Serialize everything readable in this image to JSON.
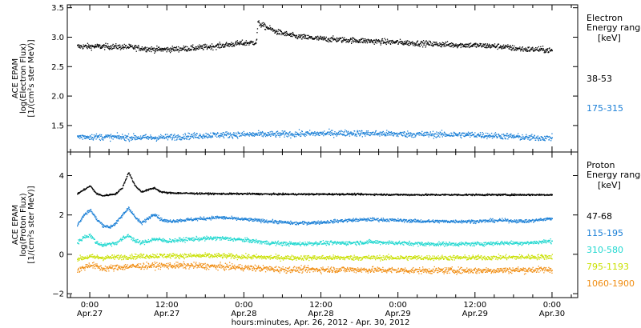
{
  "xaxis": {
    "title": "hours:minutes, Apr. 26, 2012 - Apr. 30, 2012",
    "ticks": [
      {
        "x": 0,
        "time": "0:00",
        "date": "Apr.27"
      },
      {
        "x": 12,
        "time": "12:00",
        "date": "Apr.27"
      },
      {
        "x": 24,
        "time": "0:00",
        "date": "Apr.28"
      },
      {
        "x": 36,
        "time": "12:00",
        "date": "Apr.28"
      },
      {
        "x": 48,
        "time": "0:00",
        "date": "Apr.29"
      },
      {
        "x": 60,
        "time": "12:00",
        "date": "Apr.29"
      },
      {
        "x": 72,
        "time": "0:00",
        "date": "Apr.30"
      }
    ]
  },
  "chart_data": [
    {
      "type": "scatter",
      "ylabel": [
        "ACE EPAM",
        "log(Electron Flux)",
        "[1/(cm²s ster MeV)]"
      ],
      "ylim": [
        1.05,
        3.55
      ],
      "yticks": [
        "3.5",
        "3.0",
        "2.5",
        "2.0",
        "1.5"
      ],
      "ytick_values": [
        3.5,
        3.0,
        2.5,
        2.0,
        1.5
      ],
      "xlim": [
        -3.5,
        76
      ],
      "legend": {
        "title": "Electron",
        "subtitle": "Energy ranges",
        "unit": "[keV]"
      },
      "series": [
        {
          "name": "38-53",
          "color": "#000000",
          "noise": 0.045,
          "points": [
            [
              -2,
              2.85
            ],
            [
              2,
              2.85
            ],
            [
              6,
              2.84
            ],
            [
              8,
              2.82
            ],
            [
              10,
              2.8
            ],
            [
              12,
              2.8
            ],
            [
              16,
              2.82
            ],
            [
              20,
              2.86
            ],
            [
              23,
              2.9
            ],
            [
              25.9,
              2.92
            ],
            [
              26.1,
              3.25
            ],
            [
              27,
              3.2
            ],
            [
              29,
              3.1
            ],
            [
              32,
              3.02
            ],
            [
              36,
              2.98
            ],
            [
              40,
              2.96
            ],
            [
              44,
              2.94
            ],
            [
              48,
              2.92
            ],
            [
              52,
              2.9
            ],
            [
              56,
              2.88
            ],
            [
              60,
              2.87
            ],
            [
              64,
              2.85
            ],
            [
              66,
              2.82
            ],
            [
              68,
              2.8
            ],
            [
              70,
              2.8
            ],
            [
              72,
              2.78
            ]
          ]
        },
        {
          "name": "175-315",
          "color": "#1a7fd6",
          "noise": 0.05,
          "points": [
            [
              -2,
              1.32
            ],
            [
              10,
              1.3
            ],
            [
              20,
              1.35
            ],
            [
              30,
              1.36
            ],
            [
              40,
              1.38
            ],
            [
              50,
              1.36
            ],
            [
              60,
              1.35
            ],
            [
              66,
              1.32
            ],
            [
              68,
              1.3
            ],
            [
              72,
              1.3
            ]
          ]
        }
      ]
    },
    {
      "type": "scatter",
      "ylabel": [
        "ACE EPAM",
        "log(Proton Flux)",
        "[1/(cm²s ster MeV)]"
      ],
      "ylim": [
        -2.2,
        5.2
      ],
      "yticks": [
        "4",
        "2",
        "0",
        "−2"
      ],
      "ytick_values": [
        4,
        2,
        0,
        -2
      ],
      "xlim": [
        -3.5,
        76
      ],
      "legend": {
        "title": "Proton",
        "subtitle": "Energy ranges",
        "unit": "[keV]"
      },
      "series": [
        {
          "name": "47-68",
          "color": "#000000",
          "noise": 0.04,
          "points": [
            [
              -2,
              3.1
            ],
            [
              -1,
              3.3
            ],
            [
              0,
              3.5
            ],
            [
              1,
              3.1
            ],
            [
              2,
              3.0
            ],
            [
              4,
              3.1
            ],
            [
              5,
              3.4
            ],
            [
              6,
              4.2
            ],
            [
              7,
              3.5
            ],
            [
              8,
              3.2
            ],
            [
              9,
              3.3
            ],
            [
              10,
              3.4
            ],
            [
              11,
              3.2
            ],
            [
              12,
              3.15
            ],
            [
              16,
              3.12
            ],
            [
              20,
              3.1
            ],
            [
              24,
              3.1
            ],
            [
              30,
              3.08
            ],
            [
              40,
              3.08
            ],
            [
              50,
              3.05
            ],
            [
              60,
              3.05
            ],
            [
              72,
              3.05
            ]
          ]
        },
        {
          "name": "115-195",
          "color": "#1a7fd6",
          "noise": 0.08,
          "points": [
            [
              -2,
              1.5
            ],
            [
              -1,
              2.0
            ],
            [
              0,
              2.3
            ],
            [
              1,
              1.8
            ],
            [
              2,
              1.5
            ],
            [
              3,
              1.4
            ],
            [
              4,
              1.6
            ],
            [
              5,
              2.0
            ],
            [
              6,
              2.4
            ],
            [
              7,
              1.9
            ],
            [
              8,
              1.6
            ],
            [
              10,
              2.1
            ],
            [
              11,
              1.8
            ],
            [
              12,
              1.7
            ],
            [
              16,
              1.8
            ],
            [
              20,
              1.9
            ],
            [
              24,
              1.8
            ],
            [
              28,
              1.7
            ],
            [
              32,
              1.6
            ],
            [
              36,
              1.65
            ],
            [
              40,
              1.75
            ],
            [
              44,
              1.8
            ],
            [
              48,
              1.75
            ],
            [
              52,
              1.7
            ],
            [
              56,
              1.7
            ],
            [
              60,
              1.7
            ],
            [
              64,
              1.75
            ],
            [
              68,
              1.7
            ],
            [
              72,
              1.85
            ]
          ]
        },
        {
          "name": "310-580",
          "color": "#22d8d0",
          "noise": 0.1,
          "points": [
            [
              -2,
              0.6
            ],
            [
              -1,
              0.9
            ],
            [
              0,
              1.0
            ],
            [
              1,
              0.6
            ],
            [
              2,
              0.5
            ],
            [
              4,
              0.6
            ],
            [
              6,
              1.0
            ],
            [
              7,
              0.7
            ],
            [
              8,
              0.6
            ],
            [
              10,
              0.8
            ],
            [
              12,
              0.7
            ],
            [
              16,
              0.8
            ],
            [
              20,
              0.85
            ],
            [
              24,
              0.75
            ],
            [
              28,
              0.6
            ],
            [
              32,
              0.55
            ],
            [
              36,
              0.6
            ],
            [
              40,
              0.6
            ],
            [
              44,
              0.65
            ],
            [
              48,
              0.6
            ],
            [
              52,
              0.55
            ],
            [
              56,
              0.55
            ],
            [
              60,
              0.55
            ],
            [
              64,
              0.6
            ],
            [
              68,
              0.6
            ],
            [
              72,
              0.7
            ]
          ]
        },
        {
          "name": "795-1193",
          "color": "#c9e000",
          "noise": 0.12,
          "points": [
            [
              -2,
              -0.2
            ],
            [
              0,
              -0.1
            ],
            [
              2,
              -0.15
            ],
            [
              6,
              -0.1
            ],
            [
              10,
              -0.05
            ],
            [
              16,
              -0.05
            ],
            [
              20,
              -0.05
            ],
            [
              24,
              -0.1
            ],
            [
              30,
              -0.15
            ],
            [
              40,
              -0.15
            ],
            [
              50,
              -0.15
            ],
            [
              60,
              -0.15
            ],
            [
              72,
              -0.1
            ]
          ]
        },
        {
          "name": "1060-1900",
          "color": "#f08c10",
          "noise": 0.15,
          "points": [
            [
              -2,
              -0.8
            ],
            [
              0,
              -0.5
            ],
            [
              2,
              -0.7
            ],
            [
              6,
              -0.6
            ],
            [
              10,
              -0.55
            ],
            [
              16,
              -0.55
            ],
            [
              20,
              -0.6
            ],
            [
              24,
              -0.65
            ],
            [
              30,
              -0.75
            ],
            [
              40,
              -0.75
            ],
            [
              50,
              -0.8
            ],
            [
              60,
              -0.8
            ],
            [
              72,
              -0.75
            ]
          ]
        }
      ]
    }
  ]
}
